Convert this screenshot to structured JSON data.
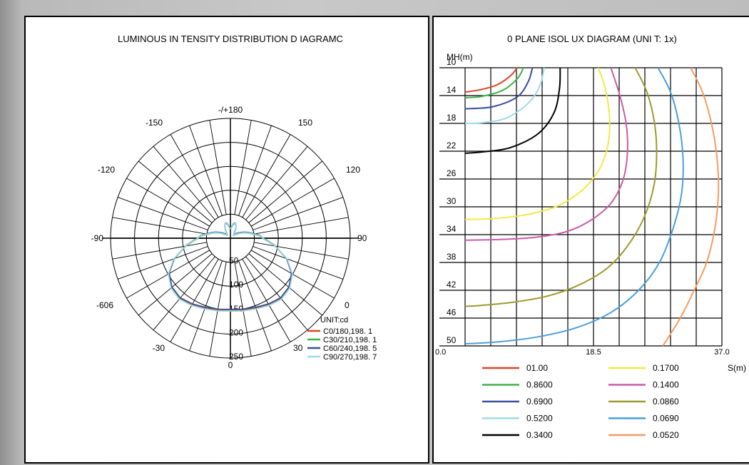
{
  "colors": {
    "c0": "#d9462b",
    "c30": "#3fb24a",
    "c60": "#3a4ea2",
    "c90": "#9fdbe6",
    "iso_0100": "#d9462b",
    "iso_0860": "#3fb24a",
    "iso_0690": "#3a4ea2",
    "iso_0520": "#9fdbe6",
    "iso_0340": "#000000",
    "iso_01700": "#f0ea45",
    "iso_01400": "#cc5aa8",
    "iso_00860": "#9e9a2e",
    "iso_00690": "#4a9fdc",
    "iso_00520": "#f59c62"
  },
  "chart_data": [
    {
      "type": "polar",
      "title": "LUMINOUS IN TENSITY DISTRIBUTION D  IAGRAMC",
      "angle_labels": {
        "top": "-/+180",
        "upper_left": "-150",
        "upper_right": "150",
        "left_upper": "-120",
        "right_upper": "120",
        "left": "-90",
        "right": "90",
        "lower_left_outer": "-606",
        "lower_right_outer": "0",
        "bottom_left": "-30",
        "bottom_right": "30",
        "bottom": "0"
      },
      "radial_labels": [
        "50",
        "100",
        "150",
        "200",
        "250"
      ],
      "rmax": 250,
      "unit_label": "UNIT:cd",
      "legend": [
        {
          "label": "C0/180,198. 1",
          "color_key": "c0"
        },
        {
          "label": "C30/210,198. 1",
          "color_key": "c30"
        },
        {
          "label": "C60/240,198. 5",
          "color_key": "c60"
        },
        {
          "label": "C90/270,198. 7",
          "color_key": "c90"
        }
      ],
      "curve_points_deg_cd": [
        [
          0,
          150
        ],
        [
          10,
          152
        ],
        [
          20,
          155
        ],
        [
          30,
          160
        ],
        [
          40,
          164
        ],
        [
          50,
          160
        ],
        [
          60,
          148
        ],
        [
          70,
          125
        ],
        [
          80,
          95
        ],
        [
          85,
          80
        ],
        [
          90,
          68
        ],
        [
          95,
          62
        ],
        [
          100,
          50
        ],
        [
          105,
          42
        ],
        [
          110,
          35
        ],
        [
          115,
          28
        ],
        [
          120,
          22
        ],
        [
          125,
          16
        ],
        [
          130,
          12
        ],
        [
          135,
          10
        ],
        [
          140,
          12
        ],
        [
          145,
          16
        ],
        [
          150,
          22
        ],
        [
          155,
          28
        ],
        [
          160,
          32
        ],
        [
          165,
          32
        ],
        [
          170,
          28
        ],
        [
          175,
          22
        ],
        [
          180,
          20
        ]
      ]
    },
    {
      "type": "line",
      "title": "0 PLANE ISOL UX DIAGRAM (UNI  T: 1x)",
      "ylabel": "MH(m)",
      "xlabel": "S(m)",
      "y_ticks": [
        "10",
        "14",
        "18",
        "22",
        "26",
        "30",
        "34",
        "38",
        "42",
        "46",
        "50"
      ],
      "x_ticks": [
        "0.0",
        "18.5",
        "37.0"
      ],
      "xlim": [
        0,
        37
      ],
      "ylim": [
        10,
        50
      ],
      "series": [
        {
          "name": "01.00",
          "color_key": "iso_0100",
          "points": [
            [
              7.5,
              10
            ],
            [
              6.5,
              11.2
            ],
            [
              4.5,
              12.5
            ],
            [
              2,
              13.2
            ],
            [
              0,
              13.5
            ]
          ]
        },
        {
          "name": "0.8600",
          "color_key": "iso_0860",
          "points": [
            [
              8.4,
              10
            ],
            [
              7.6,
              11.5
            ],
            [
              5.5,
              13.2
            ],
            [
              2.5,
              14.1
            ],
            [
              0,
              14.3
            ]
          ]
        },
        {
          "name": "0.6900",
          "color_key": "iso_0690",
          "points": [
            [
              9.7,
              10
            ],
            [
              9.1,
              12
            ],
            [
              7.5,
              14.2
            ],
            [
              4,
              15.6
            ],
            [
              0,
              15.9
            ]
          ]
        },
        {
          "name": "0.5200",
          "color_key": "iso_0520",
          "points": [
            [
              11.4,
              10
            ],
            [
              10.8,
              12.5
            ],
            [
              9.2,
              15
            ],
            [
              6,
              17.2
            ],
            [
              2.5,
              17.9
            ],
            [
              0,
              18
            ]
          ]
        },
        {
          "name": "0.3400",
          "color_key": "iso_0340",
          "points": [
            [
              13.7,
              10
            ],
            [
              13.6,
              13
            ],
            [
              12.8,
              16.5
            ],
            [
              10.5,
              19.5
            ],
            [
              6.5,
              21.5
            ],
            [
              2.5,
              22.1
            ],
            [
              0,
              22.3
            ]
          ]
        },
        {
          "name": "0.1700",
          "color_key": "iso_01700",
          "points": [
            [
              19.2,
              10
            ],
            [
              20.2,
              13
            ],
            [
              20.8,
              17
            ],
            [
              20.6,
              21
            ],
            [
              19.4,
              24.5
            ],
            [
              17,
              27.5
            ],
            [
              13.5,
              29.8
            ],
            [
              9,
              31.1
            ],
            [
              4,
              31.7
            ],
            [
              0,
              31.8
            ]
          ]
        },
        {
          "name": "0.1400",
          "color_key": "iso_01400",
          "points": [
            [
              21,
              10
            ],
            [
              22.3,
              14
            ],
            [
              23.2,
              18
            ],
            [
              23.4,
              22
            ],
            [
              22.8,
              26
            ],
            [
              21,
              29.5
            ],
            [
              18,
              32
            ],
            [
              14.5,
              33.6
            ],
            [
              10,
              34.4
            ],
            [
              5,
              34.7
            ],
            [
              0,
              34.8
            ]
          ]
        },
        {
          "name": "0.0860",
          "color_key": "iso_00860",
          "points": [
            [
              24.5,
              10
            ],
            [
              26.2,
              13.5
            ],
            [
              27.3,
              18
            ],
            [
              27.6,
              22.5
            ],
            [
              27.2,
              27
            ],
            [
              25.8,
              31.5
            ],
            [
              23.5,
              35.5
            ],
            [
              20.5,
              38.8
            ],
            [
              16.5,
              41.2
            ],
            [
              12,
              42.8
            ],
            [
              7,
              43.7
            ],
            [
              2,
              44.2
            ],
            [
              0,
              44.3
            ]
          ]
        },
        {
          "name": "0.0690",
          "color_key": "iso_00690",
          "points": [
            [
              27.8,
              10
            ],
            [
              29.6,
              13.5
            ],
            [
              30.8,
              18
            ],
            [
              31.4,
              23
            ],
            [
              31.2,
              28
            ],
            [
              30,
              33
            ],
            [
              28,
              38
            ],
            [
              25,
              42
            ],
            [
              21,
              45.2
            ],
            [
              16,
              47.4
            ],
            [
              10.5,
              48.7
            ],
            [
              5,
              49.4
            ],
            [
              0,
              49.7
            ]
          ]
        },
        {
          "name": "0.0520",
          "color_key": "iso_00520",
          "points": [
            [
              32.5,
              10
            ],
            [
              34.2,
              13.5
            ],
            [
              35.5,
              18
            ],
            [
              36.3,
              23
            ],
            [
              36.5,
              28
            ],
            [
              36,
              33
            ],
            [
              34.8,
              38
            ],
            [
              33,
              42
            ],
            [
              31,
              46
            ],
            [
              28.5,
              50
            ]
          ]
        }
      ]
    }
  ]
}
